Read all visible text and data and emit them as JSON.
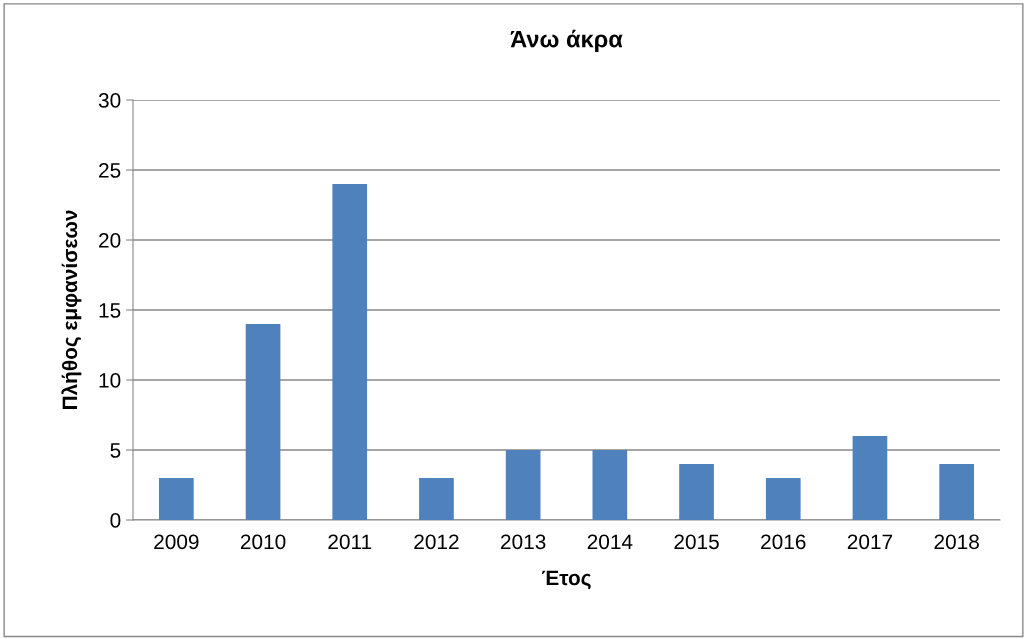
{
  "chart_data": {
    "type": "bar",
    "title": "Άνω άκρα",
    "xlabel": "Έτος",
    "ylabel": "Πλήθος εμφανίσεων",
    "categories": [
      "2009",
      "2010",
      "2011",
      "2012",
      "2013",
      "2014",
      "2015",
      "2016",
      "2017",
      "2018"
    ],
    "values": [
      3,
      14,
      24,
      3,
      5,
      5,
      4,
      3,
      6,
      4
    ],
    "color": "#4f81bd",
    "ylim": [
      0,
      30
    ],
    "yticks": [
      0,
      5,
      10,
      15,
      20,
      25,
      30
    ],
    "grid": "y",
    "legend": false
  }
}
